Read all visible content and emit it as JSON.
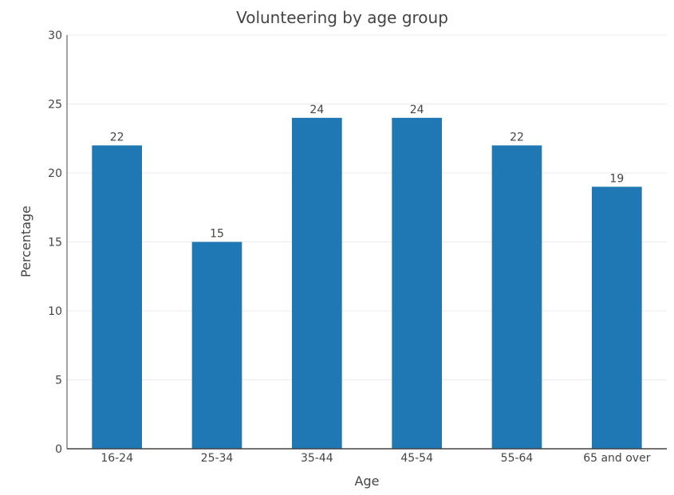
{
  "chart_data": {
    "type": "bar",
    "title": "Volunteering by age group",
    "xlabel": "Age",
    "ylabel": "Percentage",
    "categories": [
      "16-24",
      "25-34",
      "35-44",
      "45-54",
      "55-64",
      "65 and over"
    ],
    "values": [
      22,
      15,
      24,
      24,
      22,
      19
    ],
    "ylim": [
      0,
      30
    ],
    "yticks": [
      0,
      5,
      10,
      15,
      20,
      25,
      30
    ],
    "grid": true,
    "bar_color": "#1f77b4"
  }
}
